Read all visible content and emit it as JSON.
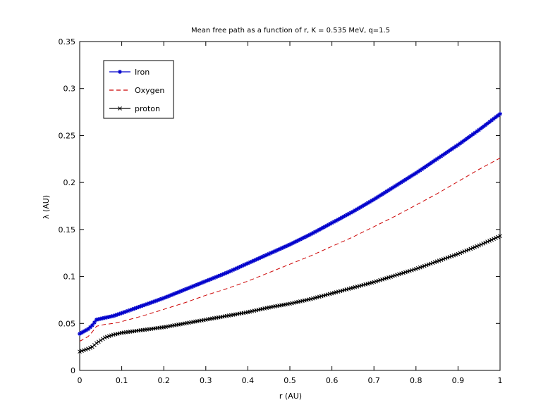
{
  "chart_data": {
    "type": "line",
    "title": "Mean free path as a function of r, K = 0.535 MeV, q=1.5",
    "xlabel": "r (AU)",
    "ylabel": "λ (AU)",
    "xlim": [
      0,
      1
    ],
    "ylim": [
      0,
      0.35
    ],
    "xticks": [
      0,
      0.1,
      0.2,
      0.3,
      0.4,
      0.5,
      0.6,
      0.7,
      0.8,
      0.9,
      1
    ],
    "xtick_labels": [
      "0",
      "0.1",
      "0.2",
      "0.3",
      "0.4",
      "0.5",
      "0.6",
      "0.7",
      "0.8",
      "0.9",
      "1"
    ],
    "yticks": [
      0,
      0.05,
      0.1,
      0.15,
      0.2,
      0.25,
      0.3,
      0.35
    ],
    "ytick_labels": [
      "0",
      "0.05",
      "0.1",
      "0.15",
      "0.2",
      "0.25",
      "0.3",
      "0.35"
    ],
    "grid": false,
    "legend_position": "top-left",
    "x": [
      0,
      0.02,
      0.03,
      0.04,
      0.06,
      0.08,
      0.1,
      0.15,
      0.2,
      0.25,
      0.3,
      0.35,
      0.4,
      0.45,
      0.5,
      0.55,
      0.6,
      0.65,
      0.7,
      0.75,
      0.8,
      0.85,
      0.9,
      0.95,
      1.0
    ],
    "series": [
      {
        "name": "Iron",
        "color": "#0000cc",
        "style": "solid-asterisk",
        "values": [
          0.039,
          0.044,
          0.048,
          0.054,
          0.056,
          0.058,
          0.061,
          0.069,
          0.077,
          0.086,
          0.095,
          0.104,
          0.114,
          0.124,
          0.134,
          0.145,
          0.157,
          0.169,
          0.182,
          0.196,
          0.21,
          0.225,
          0.24,
          0.256,
          0.273
        ]
      },
      {
        "name": "Oxygen",
        "color": "#cc0000",
        "style": "dashed",
        "values": [
          0.031,
          0.036,
          0.041,
          0.047,
          0.049,
          0.05,
          0.052,
          0.058,
          0.065,
          0.072,
          0.08,
          0.087,
          0.095,
          0.104,
          0.113,
          0.122,
          0.132,
          0.142,
          0.153,
          0.164,
          0.176,
          0.188,
          0.201,
          0.214,
          0.226
        ]
      },
      {
        "name": "proton",
        "color": "#000000",
        "style": "solid-cross",
        "values": [
          0.02,
          0.023,
          0.025,
          0.029,
          0.035,
          0.038,
          0.04,
          0.043,
          0.046,
          0.05,
          0.054,
          0.058,
          0.062,
          0.067,
          0.071,
          0.076,
          0.082,
          0.088,
          0.094,
          0.101,
          0.108,
          0.116,
          0.124,
          0.133,
          0.143
        ]
      }
    ]
  }
}
